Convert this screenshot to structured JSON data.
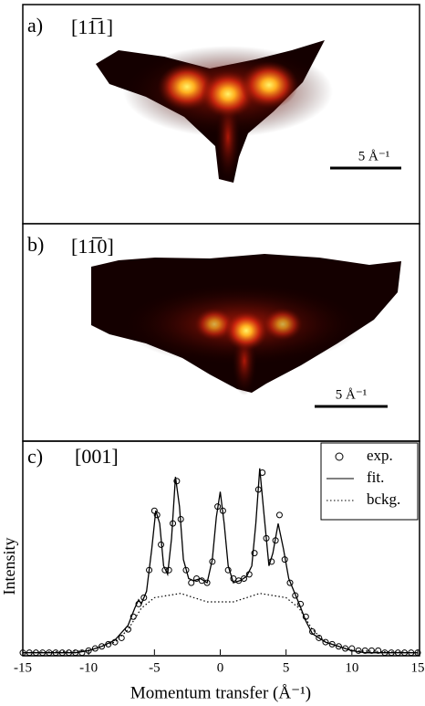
{
  "chart_data": [
    {
      "type": "image",
      "label": "a)",
      "direction": "[11̅1]",
      "scale": "5 Å⁻¹"
    },
    {
      "type": "image",
      "label": "b)",
      "direction": "[11̅0]",
      "scale": "5 Å⁻¹"
    },
    {
      "type": "line",
      "label": "c)",
      "direction": "[001]",
      "xlabel": "Momentum transfer (Å⁻¹)",
      "ylabel": "Intensity",
      "xlim": [
        -15,
        15
      ],
      "xticks": [
        -15,
        -10,
        -5,
        0,
        5,
        10,
        15
      ],
      "ylim": [
        0,
        1
      ],
      "legend": "upper right",
      "series": [
        {
          "name": "exp.",
          "color": "#000000",
          "style": "circle",
          "x": [
            -15,
            -14.5,
            -14,
            -13.5,
            -13,
            -12.5,
            -12,
            -11.5,
            -11,
            -10.5,
            -10,
            -9.5,
            -9,
            -8.5,
            -8,
            -7.5,
            -7,
            -6.6,
            -6.2,
            -5.8,
            -5.4,
            -5.0,
            -4.8,
            -4.5,
            -4.2,
            -3.9,
            -3.6,
            -3.3,
            -3.0,
            -2.6,
            -2.2,
            -1.8,
            -1.4,
            -1.0,
            -0.6,
            -0.2,
            0.2,
            0.6,
            1.0,
            1.4,
            1.8,
            2.2,
            2.6,
            2.9,
            3.2,
            3.5,
            3.9,
            4.2,
            4.5,
            4.9,
            5.3,
            5.7,
            6.1,
            6.5,
            7.0,
            7.5,
            8,
            8.5,
            9,
            9.5,
            10,
            10.5,
            11,
            11.5,
            12,
            12.5,
            13,
            13.5,
            14,
            14.5,
            15
          ],
          "values": [
            0.01,
            0.01,
            0.01,
            0.01,
            0.01,
            0.01,
            0.01,
            0.01,
            0.01,
            0.01,
            0.02,
            0.03,
            0.04,
            0.05,
            0.06,
            0.08,
            0.12,
            0.18,
            0.24,
            0.27,
            0.4,
            0.68,
            0.66,
            0.52,
            0.4,
            0.4,
            0.62,
            0.82,
            0.64,
            0.4,
            0.34,
            0.36,
            0.35,
            0.34,
            0.44,
            0.7,
            0.68,
            0.4,
            0.36,
            0.35,
            0.36,
            0.38,
            0.48,
            0.78,
            0.86,
            0.55,
            0.44,
            0.54,
            0.66,
            0.45,
            0.34,
            0.28,
            0.24,
            0.18,
            0.11,
            0.08,
            0.06,
            0.05,
            0.04,
            0.03,
            0.03,
            0.02,
            0.02,
            0.02,
            0.02,
            0.01,
            0.01,
            0.01,
            0.01,
            0.01,
            0.01
          ]
        },
        {
          "name": "fit.",
          "color": "#000000",
          "style": "solid",
          "x": [
            -15,
            -11,
            -10,
            -9,
            -8,
            -7,
            -6.5,
            -6.2,
            -6,
            -5.6,
            -5.2,
            -4.9,
            -4.6,
            -4.3,
            -4.0,
            -3.7,
            -3.4,
            -3.1,
            -2.8,
            -2.4,
            -2,
            -1.5,
            -1,
            -0.6,
            -0.3,
            0,
            0.3,
            0.6,
            1,
            1.5,
            2,
            2.4,
            2.7,
            3,
            3.3,
            3.7,
            4,
            4.4,
            4.8,
            5.2,
            5.6,
            6,
            6.5,
            7,
            8,
            9,
            10,
            11,
            15
          ],
          "values": [
            0.01,
            0.01,
            0.02,
            0.04,
            0.07,
            0.14,
            0.22,
            0.26,
            0.24,
            0.3,
            0.5,
            0.68,
            0.62,
            0.42,
            0.38,
            0.55,
            0.84,
            0.7,
            0.45,
            0.36,
            0.35,
            0.36,
            0.34,
            0.45,
            0.65,
            0.77,
            0.62,
            0.42,
            0.34,
            0.35,
            0.37,
            0.42,
            0.62,
            0.88,
            0.68,
            0.42,
            0.48,
            0.62,
            0.5,
            0.36,
            0.3,
            0.24,
            0.16,
            0.1,
            0.06,
            0.04,
            0.02,
            0.01,
            0.01
          ]
        },
        {
          "name": "bckg.",
          "color": "#000000",
          "style": "dotted",
          "x": [
            -15,
            -10,
            -8,
            -7,
            -6,
            -5,
            -4,
            -3,
            -2,
            -1,
            0,
            1,
            2,
            3,
            4,
            5,
            6,
            7,
            8,
            10,
            15
          ],
          "values": [
            0.01,
            0.02,
            0.06,
            0.12,
            0.22,
            0.27,
            0.28,
            0.29,
            0.27,
            0.25,
            0.25,
            0.25,
            0.27,
            0.29,
            0.28,
            0.27,
            0.22,
            0.12,
            0.06,
            0.02,
            0.01
          ]
        }
      ]
    }
  ]
}
